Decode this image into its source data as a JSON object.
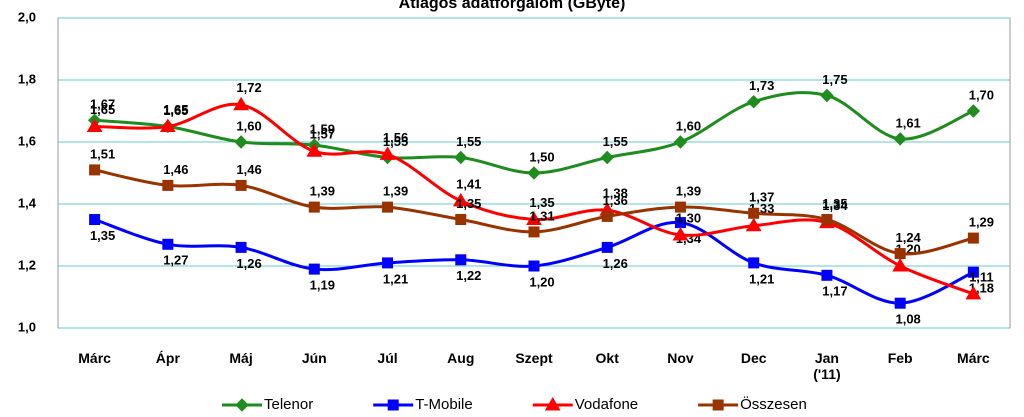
{
  "chart_data": {
    "type": "line",
    "title": "Átlagos adatforgalom (GByte)",
    "categories": [
      "Márc",
      "Ápr",
      "Máj",
      "Jún",
      "Júl",
      "Aug",
      "Szept",
      "Okt",
      "Nov",
      "Dec",
      "Jan ('11)",
      "Feb",
      "Márc"
    ],
    "ylim": [
      1.0,
      2.0
    ],
    "yticks": [
      {
        "value": 1.0,
        "label": "1,0"
      },
      {
        "value": 1.2,
        "label": "1,2"
      },
      {
        "value": 1.4,
        "label": "1,4"
      },
      {
        "value": 1.6,
        "label": "1,6"
      },
      {
        "value": 1.8,
        "label": "1,8"
      },
      {
        "value": 2.0,
        "label": "2,0"
      }
    ],
    "grid": true,
    "legend": "bottom",
    "series": [
      {
        "name": "Telenor",
        "color": "#1e8c1e",
        "marker": "diamond",
        "values": [
          1.67,
          1.65,
          1.6,
          1.59,
          1.55,
          1.55,
          1.5,
          1.55,
          1.6,
          1.73,
          1.75,
          1.61,
          1.7
        ],
        "value_labels": [
          "1,67",
          "1,65",
          "1,60",
          "1,59",
          "1,55",
          "1,55",
          "1,50",
          "1,55",
          "1,60",
          "1,73",
          "1,75",
          "1,61",
          "1,70"
        ]
      },
      {
        "name": "T-Mobile",
        "color": "#0000ff",
        "marker": "square",
        "values": [
          1.35,
          1.27,
          1.26,
          1.19,
          1.21,
          1.22,
          1.2,
          1.26,
          1.34,
          1.21,
          1.17,
          1.08,
          1.18
        ],
        "value_labels": [
          "1,35",
          "1,27",
          "1,26",
          "1,19",
          "1,21",
          "1,22",
          "1,20",
          "1,26",
          "1,34",
          "1,21",
          "1,17",
          "1,08",
          "1,18"
        ]
      },
      {
        "name": "Vodafone",
        "color": "#ff0000",
        "marker": "triangle",
        "values": [
          1.65,
          1.65,
          1.72,
          1.57,
          1.56,
          1.41,
          1.35,
          1.38,
          1.3,
          1.33,
          1.34,
          1.2,
          1.11
        ],
        "value_labels": [
          "1,65",
          "1,65",
          "1,72",
          "1,57",
          "1,56",
          "1,41",
          "1,35",
          "1,38",
          "1,30",
          "1,33",
          "1,34",
          "1,20",
          "1,11"
        ]
      },
      {
        "name": "Összesen",
        "color": "#993300",
        "marker": "square",
        "values": [
          1.51,
          1.46,
          1.46,
          1.39,
          1.39,
          1.35,
          1.31,
          1.36,
          1.39,
          1.37,
          1.35,
          1.24,
          1.29
        ],
        "value_labels": [
          "1,51",
          "1,46",
          "1,46",
          "1,39",
          "1,39",
          "1,35",
          "1,31",
          "1,36",
          "1,39",
          "1,37",
          "1,35",
          "1,24",
          "1,29"
        ]
      }
    ]
  }
}
